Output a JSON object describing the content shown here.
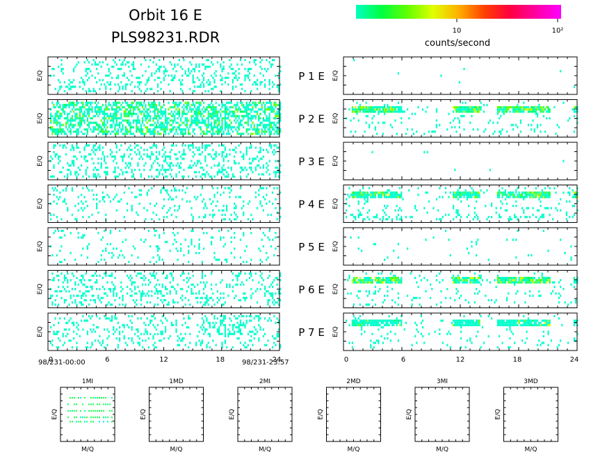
{
  "header": {
    "title_line1": "Orbit 16 E",
    "title_line2": "PLS98231.RDR"
  },
  "colorbar": {
    "label": "counts/second",
    "tick_labels": [
      "10",
      "10²"
    ],
    "colors": [
      "#00ffc0",
      "#00ff40",
      "#60ff00",
      "#e0ff00",
      "#ffb000",
      "#ff4000",
      "#ff0040",
      "#ff00a0",
      "#ff00ff"
    ]
  },
  "chart_data": {
    "type": "heatmap",
    "ylabel": "E/Q",
    "panels": [
      {
        "label": "P 1 E",
        "left_density": 0.18,
        "right_density": 0.004,
        "left_bright": 0.0,
        "right_bright": 0.0
      },
      {
        "label": "P 2 E",
        "left_density": 0.55,
        "right_density": 0.06,
        "left_bright": 0.25,
        "right_bright": 0.5
      },
      {
        "label": "P 3 E",
        "left_density": 0.22,
        "right_density": 0.004,
        "left_bright": 0.0,
        "right_bright": 0.0
      },
      {
        "label": "P 4 E",
        "left_density": 0.12,
        "right_density": 0.08,
        "left_bright": 0.0,
        "right_bright": 0.3
      },
      {
        "label": "P 5 E",
        "left_density": 0.07,
        "right_density": 0.02,
        "left_bright": 0.0,
        "right_bright": 0.0
      },
      {
        "label": "P 6 E",
        "left_density": 0.2,
        "right_density": 0.06,
        "left_bright": 0.0,
        "right_bright": 0.5
      },
      {
        "label": "P 7 E",
        "left_density": 0.16,
        "right_density": 0.05,
        "left_bright": 0.0,
        "right_bright": 0.1
      }
    ],
    "x_ticks": [
      0,
      6,
      12,
      18,
      24
    ],
    "xlim": [
      0,
      24
    ],
    "left_start_label": "98/231-00:00",
    "left_end_label": "98/231-23:57",
    "right_bands": [
      {
        "x0": 0.5,
        "x1": 5.8
      },
      {
        "x0": 11.0,
        "x1": 13.8
      },
      {
        "x0": 15.5,
        "x1": 21.0
      },
      {
        "x0": 23.5,
        "x1": 24.0
      }
    ]
  },
  "mass_panels": [
    {
      "title": "1MI",
      "xlabel": "M/Q",
      "ylabel": "E/Q",
      "has_data": true
    },
    {
      "title": "1MD",
      "xlabel": "M/Q",
      "ylabel": "E/Q",
      "has_data": false
    },
    {
      "title": "2MI",
      "xlabel": "M/Q",
      "ylabel": "E/Q",
      "has_data": false
    },
    {
      "title": "2MD",
      "xlabel": "M/Q",
      "ylabel": "E/Q",
      "has_data": false
    },
    {
      "title": "3MI",
      "xlabel": "M/Q",
      "ylabel": "E/Q",
      "has_data": false
    },
    {
      "title": "3MD",
      "xlabel": "M/Q",
      "ylabel": "E/Q",
      "has_data": false
    }
  ]
}
